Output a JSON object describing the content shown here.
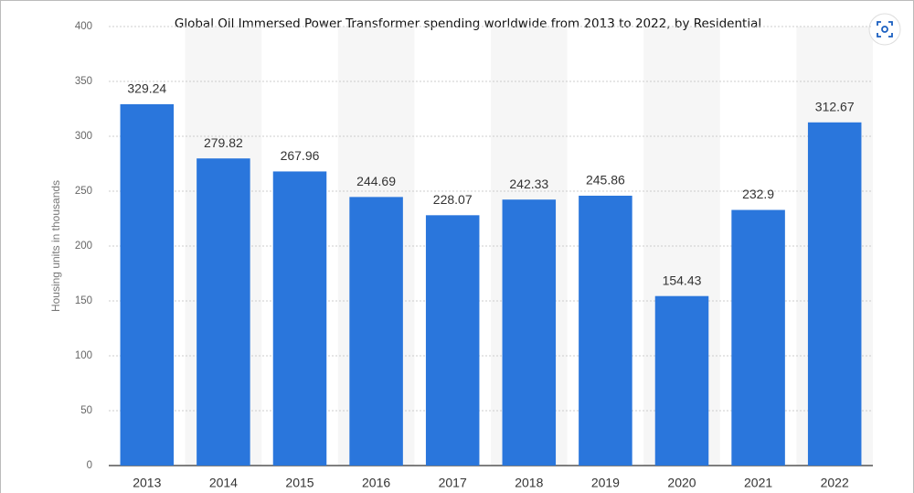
{
  "chart_data": {
    "type": "bar",
    "title": "Global Oil Immersed Power Transformer spending worldwide from 2013 to 2022, by Residential",
    "y_label": "Housing units in thousands",
    "categories": [
      "2013",
      "2014",
      "2015",
      "2016",
      "2017",
      "2018",
      "2019",
      "2020",
      "2021",
      "2022"
    ],
    "values": [
      329.24,
      279.82,
      267.96,
      244.69,
      228.07,
      242.33,
      245.86,
      154.43,
      232.9,
      312.67
    ],
    "color": "#2a76dc",
    "ylim": [
      0,
      400
    ],
    "yticks": [
      0,
      50,
      100,
      150,
      200,
      250,
      300,
      350,
      400
    ],
    "grid": true
  }
}
